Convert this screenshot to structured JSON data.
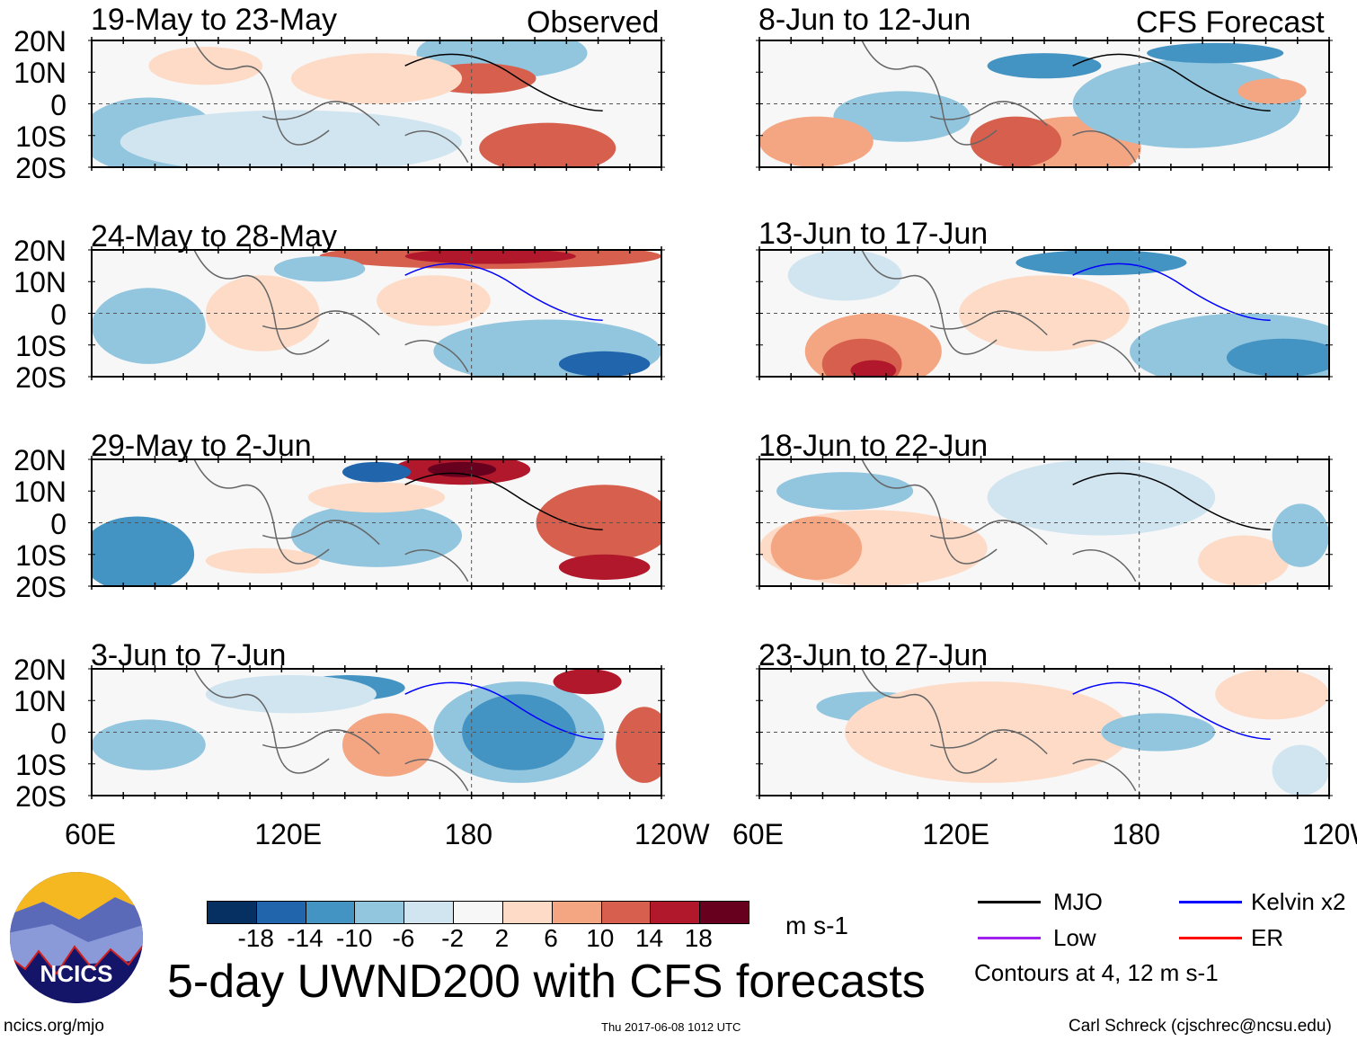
{
  "chart_data": {
    "type": "heatmap",
    "title": "5-day UWND200 with CFS forecasts",
    "variable": "200-hPa zonal wind anomaly",
    "units": "m s-1",
    "column_labels": [
      "Observed",
      "CFS Forecast"
    ],
    "yticks": [
      "20N",
      "10N",
      "0",
      "10S",
      "20S"
    ],
    "ylim": [
      -20,
      20
    ],
    "xticks": [
      "60E",
      "120E",
      "180",
      "120W"
    ],
    "xlim": [
      60,
      240
    ],
    "panels": [
      {
        "title": "19-May to 23-May",
        "column": "Observed"
      },
      {
        "title": "24-May to 28-May",
        "column": "Observed"
      },
      {
        "title": "29-May to 2-Jun",
        "column": "Observed"
      },
      {
        "title": "3-Jun to 7-Jun",
        "column": "Observed"
      },
      {
        "title": "8-Jun to 12-Jun",
        "column": "CFS Forecast"
      },
      {
        "title": "13-Jun to 17-Jun",
        "column": "CFS Forecast"
      },
      {
        "title": "18-Jun to 22-Jun",
        "column": "CFS Forecast"
      },
      {
        "title": "23-Jun to 27-Jun",
        "column": "CFS Forecast"
      }
    ],
    "colorbar": {
      "ticks": [
        "-18",
        "-14",
        "-10",
        "-6",
        "-2",
        "2",
        "6",
        "10",
        "14",
        "18"
      ],
      "colors": [
        "#053061",
        "#2166ac",
        "#4393c3",
        "#92c5de",
        "#d1e5f0",
        "#f7f7f7",
        "#fddbc7",
        "#f4a582",
        "#d6604d",
        "#b2182b",
        "#67001f"
      ],
      "units_label": "m s-1"
    },
    "legend": [
      {
        "label": "MJO",
        "color": "#000000"
      },
      {
        "label": "Kelvin x2",
        "color": "#0000ff"
      },
      {
        "label": "Low",
        "color": "#a020f0"
      },
      {
        "label": "ER",
        "color": "#ff0000"
      }
    ],
    "contour_note": "Contours at 4, 12 m s-1"
  },
  "logo": {
    "text": "NCICS"
  },
  "footer": {
    "url": "ncics.org/mjo",
    "timestamp": "Thu 2017-06-08 1012 UTC",
    "author": "Carl Schreck (cjschrec@ncsu.edu)"
  }
}
